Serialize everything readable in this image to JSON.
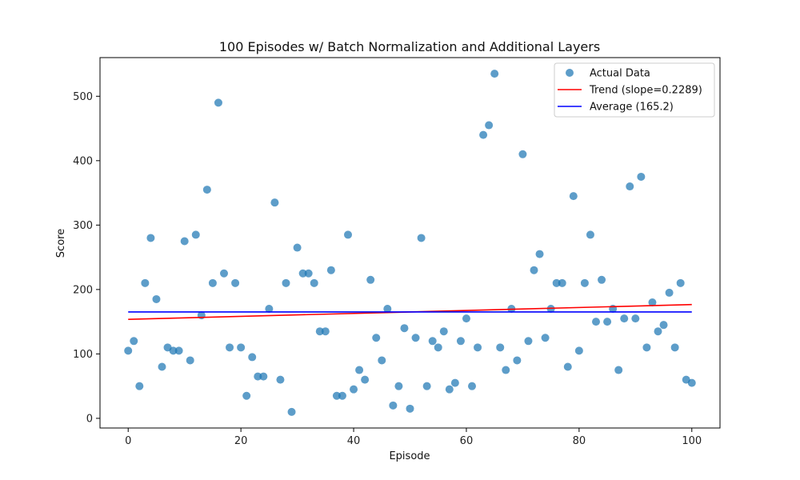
{
  "chart_data": {
    "type": "scatter",
    "title": "100 Episodes w/ Batch Normalization and Additional Layers",
    "xlabel": "Episode",
    "ylabel": "Score",
    "xlim": [
      -5,
      105
    ],
    "ylim": [
      -15,
      560
    ],
    "xticks": [
      0,
      20,
      40,
      60,
      80,
      100
    ],
    "yticks": [
      0,
      100,
      200,
      300,
      400,
      500
    ],
    "legend_position": "top-right",
    "grid": false,
    "colors": {
      "points": "#1f77b4",
      "trend": "#ff0000",
      "average": "#0000ff"
    },
    "series": [
      {
        "name": "Actual Data",
        "kind": "scatter",
        "x": [
          0,
          1,
          2,
          3,
          4,
          5,
          6,
          7,
          8,
          9,
          10,
          11,
          12,
          13,
          14,
          15,
          16,
          17,
          18,
          19,
          20,
          21,
          22,
          23,
          24,
          25,
          26,
          27,
          28,
          29,
          30,
          31,
          32,
          33,
          34,
          35,
          36,
          37,
          38,
          39,
          40,
          41,
          42,
          43,
          44,
          45,
          46,
          47,
          48,
          49,
          50,
          51,
          52,
          53,
          54,
          55,
          56,
          57,
          58,
          59,
          60,
          61,
          62,
          63,
          64,
          65,
          66,
          67,
          68,
          69,
          70,
          71,
          72,
          73,
          74,
          75,
          76,
          77,
          78,
          79,
          80,
          81,
          82,
          83,
          84,
          85,
          86,
          87,
          88,
          89,
          90,
          91,
          92,
          93,
          94,
          95,
          96,
          97,
          98,
          99,
          100
        ],
        "y": [
          105,
          120,
          50,
          210,
          280,
          185,
          80,
          110,
          105,
          105,
          275,
          90,
          285,
          160,
          355,
          210,
          490,
          225,
          110,
          210,
          110,
          35,
          95,
          65,
          65,
          170,
          335,
          60,
          210,
          10,
          265,
          225,
          225,
          210,
          135,
          135,
          230,
          35,
          35,
          285,
          45,
          75,
          60,
          215,
          125,
          90,
          170,
          20,
          50,
          140,
          15,
          125,
          280,
          50,
          120,
          110,
          135,
          45,
          55,
          120,
          155,
          50,
          110,
          440,
          455,
          535,
          110,
          75,
          170,
          90,
          410,
          120,
          230,
          255,
          125,
          170,
          210,
          210,
          80,
          345,
          105,
          210,
          285,
          150,
          215,
          150,
          170,
          75,
          155,
          360,
          155,
          375,
          110,
          180,
          135,
          145,
          195,
          110,
          210,
          60,
          55
        ]
      },
      {
        "name": "Trend (slope=0.2289)",
        "kind": "line",
        "x": [
          0,
          100
        ],
        "y": [
          153.7,
          176.6
        ]
      },
      {
        "name": "Average (165.2)",
        "kind": "line",
        "x": [
          0,
          100
        ],
        "y": [
          165.2,
          165.2
        ]
      }
    ]
  }
}
